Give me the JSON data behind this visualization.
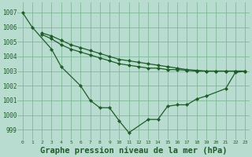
{
  "background_color": "#b8ddd0",
  "grid_color": "#80b898",
  "line_color": "#1e5c28",
  "xlabel": "Graphe pression niveau de la mer (hPa)",
  "ylim": [
    998.3,
    1007.7
  ],
  "xlim": [
    -0.5,
    23.5
  ],
  "yticks": [
    999,
    1000,
    1001,
    1002,
    1003,
    1004,
    1005,
    1006,
    1007
  ],
  "xticks": [
    0,
    1,
    2,
    3,
    4,
    5,
    6,
    7,
    8,
    9,
    10,
    11,
    12,
    13,
    14,
    15,
    16,
    17,
    18,
    19,
    20,
    21,
    22,
    23
  ],
  "line1_x": [
    0,
    1,
    3,
    4,
    6,
    7,
    8,
    9,
    10,
    11,
    13,
    14,
    15,
    16,
    17,
    18,
    19,
    21,
    22,
    23
  ],
  "line1_y": [
    1007.0,
    1006.0,
    1004.5,
    1003.3,
    1002.0,
    1001.0,
    1000.5,
    1000.5,
    999.6,
    998.8,
    999.7,
    999.7,
    1000.6,
    1000.7,
    1000.7,
    1001.1,
    1001.3,
    1001.8,
    1002.9,
    1003.0
  ],
  "line2_x": [
    2,
    3,
    4,
    5,
    6,
    7,
    8,
    9,
    10,
    11,
    12,
    13,
    14,
    15,
    16,
    17,
    18,
    19,
    20,
    21,
    22,
    23
  ],
  "line2_y": [
    1005.5,
    1005.2,
    1004.8,
    1004.5,
    1004.3,
    1004.1,
    1003.9,
    1003.7,
    1003.5,
    1003.4,
    1003.3,
    1003.2,
    1003.2,
    1003.1,
    1003.1,
    1003.05,
    1003.0,
    1003.0,
    1003.0,
    1003.0,
    1003.0,
    1003.0
  ],
  "line3_x": [
    2,
    3,
    4,
    5,
    6,
    7,
    8,
    9,
    10,
    11,
    12,
    13,
    14,
    15,
    16,
    17,
    18,
    19,
    20,
    21,
    22,
    23
  ],
  "line3_y": [
    1005.6,
    1005.4,
    1005.1,
    1004.8,
    1004.6,
    1004.4,
    1004.2,
    1004.0,
    1003.8,
    1003.7,
    1003.6,
    1003.5,
    1003.4,
    1003.3,
    1003.2,
    1003.1,
    1003.05,
    1003.0,
    1003.0,
    1003.0,
    1003.0,
    1003.0
  ]
}
